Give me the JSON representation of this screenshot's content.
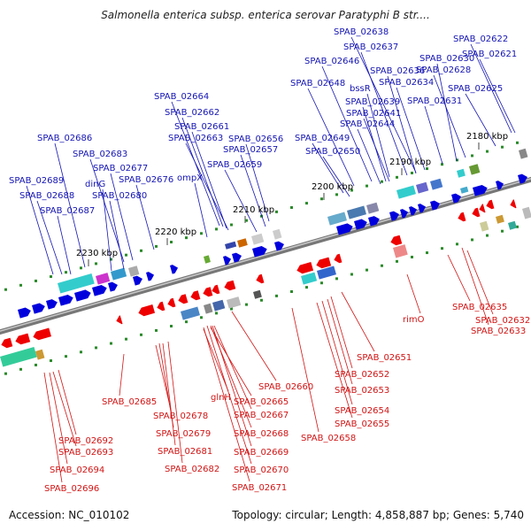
{
  "header": {
    "title": "Salmonella enterica subsp. enterica serovar Paratyphi B str...."
  },
  "footer": {
    "accession": "Accession: NC_010102",
    "summary": "Topology: circular; Length: 4,858,887 bp; Genes: 5,740"
  },
  "colors": {
    "forward": "#0000dd",
    "reverse": "#ee0000",
    "forward_label": "#1414b4",
    "reverse_label": "#d21414",
    "backbone": "#888888"
  },
  "ticks": [
    "2180 kbp",
    "2190 kbp",
    "2200 kbp",
    "2210 kbp",
    "2220 kbp",
    "2230 kbp"
  ],
  "forward_labels": [
    "SPAB_02622",
    "SPAB_02638",
    "SPAB_02621",
    "SPAB_02637",
    "SPAB_02630",
    "SPAB_02646",
    "SPAB_02636",
    "SPAB_02628",
    "SPAB_02648",
    "SPAB_02634",
    "bssR",
    "SPAB_02625",
    "SPAB_02639",
    "SPAB_02631",
    "SPAB_02664",
    "SPAB_02641",
    "SPAB_02662",
    "SPAB_02644",
    "SPAB_02661",
    "SPAB_02686",
    "SPAB_02663",
    "SPAB_02656",
    "SPAB_02649",
    "SPAB_02657",
    "SPAB_02650",
    "SPAB_02683",
    "SPAB_02659",
    "SPAB_02677",
    "SPAB_02689",
    "dinG",
    "ompX",
    "SPAB_02676",
    "SPAB_02688",
    "SPAB_02680",
    "SPAB_02687"
  ],
  "reverse_labels": [
    "rimO",
    "SPAB_02635",
    "SPAB_02632",
    "SPAB_02633",
    "SPAB_02651",
    "SPAB_02652",
    "SPAB_02660",
    "SPAB_02653",
    "SPAB_02685",
    "glnH",
    "SPAB_02665",
    "SPAB_02654",
    "SPAB_02678",
    "SPAB_02667",
    "SPAB_02655",
    "SPAB_02679",
    "SPAB_02668",
    "SPAB_02658",
    "SPAB_02692",
    "SPAB_02693",
    "SPAB_02681",
    "SPAB_02669",
    "SPAB_02682",
    "SPAB_02670",
    "SPAB_02694",
    "SPAB_02696",
    "SPAB_02671"
  ]
}
